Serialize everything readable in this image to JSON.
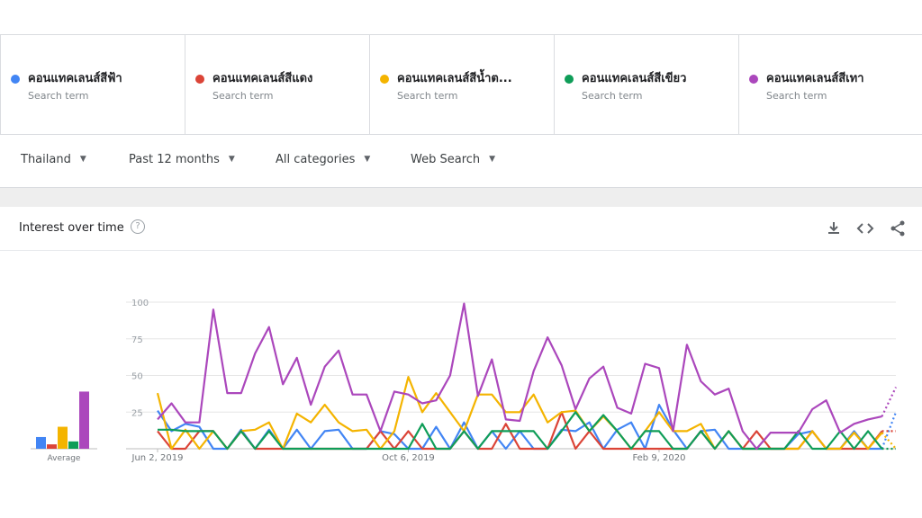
{
  "terms": [
    {
      "label": "คอนแทคเลนส์สีฟ้า",
      "sub": "Search term",
      "color": "#4285f4"
    },
    {
      "label": "คอนแทคเลนส์สีแดง",
      "sub": "Search term",
      "color": "#db4437"
    },
    {
      "label": "คอนแทคเลนส์สีน้ำต...",
      "sub": "Search term",
      "color": "#f4b400"
    },
    {
      "label": "คอนแทคเลนส์สีเขียว",
      "sub": "Search term",
      "color": "#0f9d58"
    },
    {
      "label": "คอนแทคเลนส์สีเทา",
      "sub": "Search term",
      "color": "#ab47bc"
    }
  ],
  "filters": {
    "region": "Thailand",
    "period": "Past 12 months",
    "category": "All categories",
    "search_type": "Web Search"
  },
  "card": {
    "title": "Interest over time",
    "help_glyph": "?",
    "icons": [
      "download-icon",
      "embed-code-icon",
      "share-icon"
    ]
  },
  "chart_data": {
    "type": "line",
    "title": "Interest over time",
    "ylim": [
      0,
      100
    ],
    "yticks": [
      25,
      50,
      75,
      100
    ],
    "xtick_labels": [
      {
        "label": "Jun 2, 2019",
        "index": 0
      },
      {
        "label": "Oct 6, 2019",
        "index": 18
      },
      {
        "label": "Feb 9, 2020",
        "index": 36
      }
    ],
    "grid": true,
    "partial_last_point": true,
    "average_label": "Average",
    "averages": [
      8,
      3,
      15,
      5,
      39
    ],
    "series": [
      {
        "name": "คอนแทคเลนส์สีฟ้า",
        "color": "#4285f4",
        "values": [
          26,
          12,
          17,
          15,
          0,
          0,
          13,
          0,
          13,
          0,
          13,
          0,
          12,
          13,
          0,
          0,
          12,
          10,
          0,
          0,
          15,
          0,
          18,
          0,
          12,
          0,
          12,
          0,
          0,
          13,
          12,
          18,
          0,
          13,
          18,
          0,
          30,
          13,
          0,
          12,
          13,
          0,
          0,
          0,
          0,
          0,
          10,
          12,
          0,
          0,
          12,
          0,
          0,
          25
        ]
      },
      {
        "name": "คอนแทคเลนส์สีแดง",
        "color": "#db4437",
        "values": [
          12,
          0,
          0,
          12,
          12,
          0,
          12,
          0,
          0,
          0,
          0,
          0,
          0,
          0,
          0,
          0,
          12,
          0,
          12,
          0,
          0,
          0,
          12,
          0,
          0,
          17,
          0,
          0,
          0,
          25,
          0,
          12,
          0,
          0,
          0,
          0,
          0,
          0,
          0,
          12,
          0,
          12,
          0,
          12,
          0,
          0,
          0,
          12,
          0,
          0,
          0,
          0,
          12,
          12
        ]
      },
      {
        "name": "คอนแทคเลนส์สีน้ำต...",
        "color": "#f4b400",
        "values": [
          38,
          0,
          13,
          0,
          12,
          0,
          12,
          13,
          18,
          0,
          24,
          18,
          30,
          18,
          12,
          13,
          0,
          12,
          49,
          25,
          38,
          25,
          12,
          37,
          37,
          25,
          25,
          37,
          18,
          25,
          26,
          12,
          22,
          12,
          0,
          12,
          25,
          12,
          12,
          17,
          0,
          12,
          0,
          0,
          0,
          0,
          0,
          12,
          0,
          0,
          11,
          0,
          11,
          0
        ]
      },
      {
        "name": "คอนแทคเลนส์สีเขียว",
        "color": "#0f9d58",
        "values": [
          13,
          13,
          12,
          12,
          12,
          0,
          12,
          0,
          12,
          0,
          0,
          0,
          0,
          0,
          0,
          0,
          0,
          0,
          0,
          17,
          0,
          0,
          12,
          0,
          12,
          12,
          12,
          12,
          0,
          12,
          25,
          12,
          23,
          12,
          0,
          12,
          12,
          0,
          0,
          12,
          0,
          12,
          0,
          0,
          0,
          0,
          12,
          0,
          0,
          12,
          0,
          12,
          0,
          0
        ]
      },
      {
        "name": "คอนแทคเลนส์สีเทา",
        "color": "#ab47bc",
        "values": [
          20,
          31,
          18,
          18,
          95,
          38,
          38,
          65,
          83,
          44,
          62,
          30,
          56,
          67,
          37,
          37,
          12,
          39,
          37,
          31,
          33,
          50,
          99,
          36,
          61,
          20,
          19,
          53,
          76,
          57,
          27,
          48,
          56,
          28,
          24,
          58,
          55,
          12,
          71,
          46,
          37,
          41,
          12,
          0,
          11,
          11,
          11,
          27,
          33,
          11,
          17,
          20,
          22,
          42
        ]
      }
    ]
  }
}
